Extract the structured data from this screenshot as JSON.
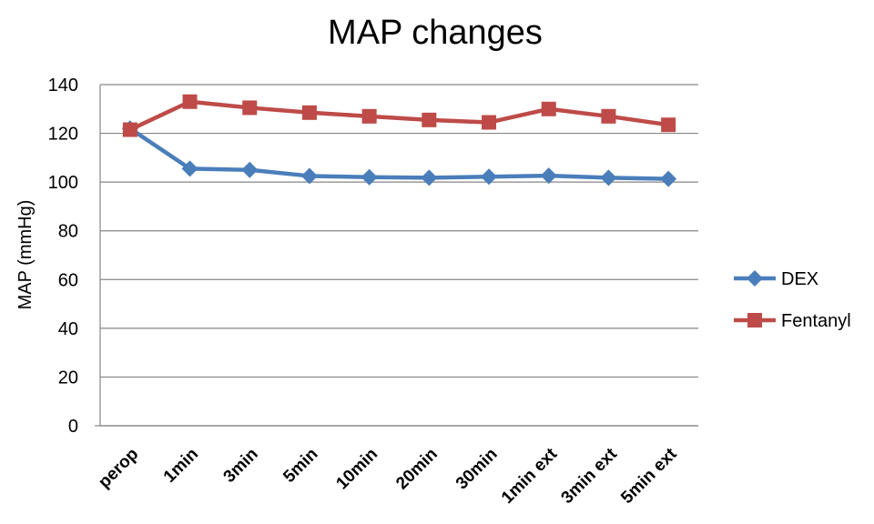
{
  "chart_data": {
    "type": "line",
    "title": "MAP changes",
    "xlabel": "",
    "ylabel": "MAP (mmHg)",
    "ylim": [
      0,
      140
    ],
    "yticks": [
      0,
      20,
      40,
      60,
      80,
      100,
      120,
      140
    ],
    "categories": [
      "perop",
      "1min",
      "3min",
      "5min",
      "10min",
      "20min",
      "30min",
      "1min ext",
      "3min ext",
      "5min ext"
    ],
    "grid": true,
    "legend_position": "right",
    "series": [
      {
        "name": "DEX",
        "color": "#4a7ebb",
        "marker": "diamond",
        "values": [
          122,
          105.5,
          105,
          102.5,
          102,
          101.8,
          102.2,
          102.6,
          101.8,
          101.3
        ]
      },
      {
        "name": "Fentanyl",
        "color": "#be4b48",
        "marker": "square",
        "values": [
          121.5,
          133,
          130.5,
          128.5,
          127,
          125.5,
          124.5,
          130,
          127,
          123.5
        ]
      }
    ]
  }
}
